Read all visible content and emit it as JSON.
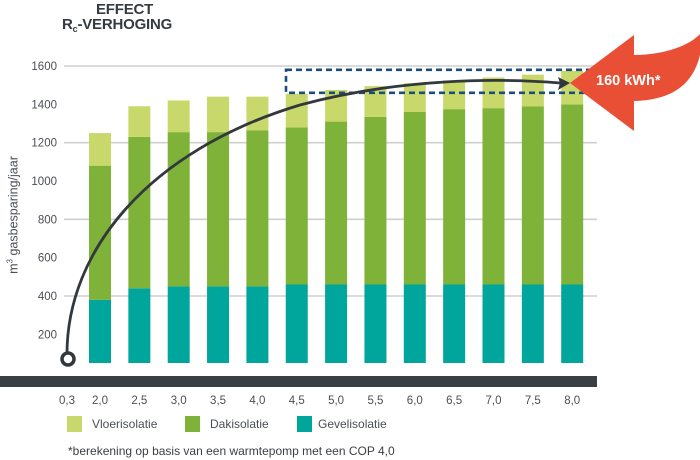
{
  "title": {
    "line1": "EFFECT",
    "line2_main": "R",
    "line2_sub": "c",
    "line2_rest": "-VERHOGING"
  },
  "colors": {
    "vloer": "#c8d86b",
    "dak": "#7fb239",
    "gevel": "#00a59b",
    "axis_bar": "#3a3f44",
    "grid": "#cfcfcf",
    "curve": "#33383d",
    "highlight_box": "#1b4e7c",
    "callout": "#e94f35"
  },
  "callout": {
    "label": "160 kWh*"
  },
  "footnote": "*berekening op basis van een warmtepomp met een COP 4,0",
  "chart_data": {
    "type": "bar",
    "stacked": true,
    "title": "EFFECT Rc-VERHOGING",
    "xlabel": "",
    "ylabel_main": "m",
    "ylabel_sup": "3",
    "ylabel_rest": " gasbesparing/jaar",
    "ylabel": "m³ gasbesparing/jaar",
    "ylim": [
      50,
      1650
    ],
    "yticks": [
      200,
      400,
      600,
      800,
      1000,
      1200,
      1400,
      1600
    ],
    "ytick_labels": [
      "200",
      "400",
      "600",
      "800",
      "1000",
      "1200",
      "1400",
      "1600"
    ],
    "gridlines": [
      400,
      800,
      1200,
      1600
    ],
    "start_label": "0,3",
    "categories": [
      "2,0",
      "2,5",
      "3,0",
      "3,5",
      "4,0",
      "4,5",
      "5,0",
      "5,5",
      "6,0",
      "6,5",
      "7,0",
      "7,5",
      "8,0"
    ],
    "series": [
      {
        "name": "Gevelisolatie",
        "key": "gevel",
        "values": [
          380,
          440,
          450,
          450,
          450,
          460,
          460,
          460,
          460,
          460,
          460,
          460,
          460
        ]
      },
      {
        "name": "Dakisolatie",
        "key": "dak",
        "values": [
          700,
          790,
          805,
          805,
          815,
          820,
          850,
          875,
          900,
          915,
          920,
          930,
          940
        ]
      },
      {
        "name": "Vloerisolatie",
        "key": "vloer",
        "values": [
          170,
          160,
          165,
          185,
          175,
          175,
          165,
          160,
          150,
          150,
          160,
          165,
          175
        ]
      }
    ],
    "totals": [
      1250,
      1390,
      1420,
      1440,
      1440,
      1455,
      1475,
      1495,
      1510,
      1525,
      1540,
      1555,
      1575
    ],
    "legend": [
      "Vloerisolatie",
      "Dakisolatie",
      "Gevelisolatie"
    ],
    "legend_position": "bottom",
    "annotation": "160 kWh*",
    "highlight_range": [
      1460,
      1580
    ]
  }
}
